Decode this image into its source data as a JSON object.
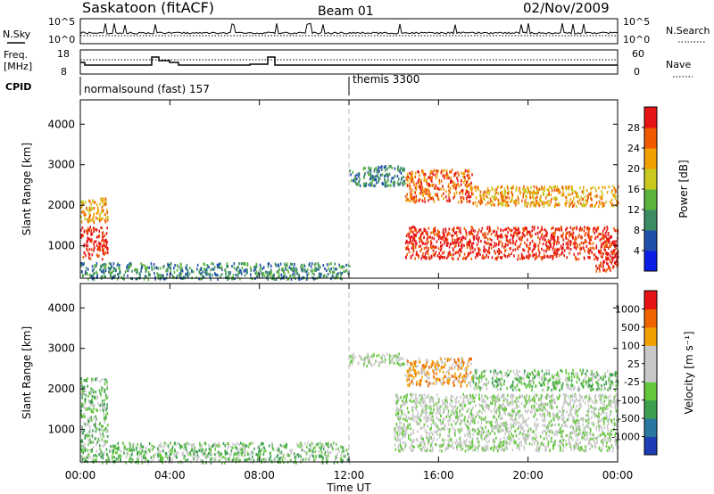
{
  "header": {
    "station": "Saskatoon (fitACF)",
    "beam": "Beam 01",
    "date": "02/Nov/2009"
  },
  "top_panels": {
    "nsky_label": "N.Sky",
    "nsearch_label": "N.Search",
    "freq_label_line1": "Freq.",
    "freq_label_line2": "[MHz]",
    "nave_label": "Nave",
    "cpid_label": "CPID",
    "noise_ticks": [
      "10^5",
      "10^0"
    ],
    "freq_ticks": [
      "18",
      "8"
    ],
    "nave_ticks": [
      "60",
      "0"
    ],
    "cpid_segments": [
      {
        "label": "normalsound (fast) 157",
        "start_hour": 0
      },
      {
        "label": "themis 3300",
        "start_hour": 12
      }
    ]
  },
  "chart_data": [
    {
      "type": "heatmap",
      "name": "power-panel",
      "xlabel": "",
      "ylabel": "Slant Range [km]",
      "xlim": [
        0,
        24
      ],
      "ylim": [
        200,
        4600
      ],
      "yticks": [
        "1000",
        "2000",
        "3000",
        "4000"
      ],
      "colorbar": {
        "label": "Power [dB]",
        "ticks": [
          "4",
          "8",
          "12",
          "16",
          "20",
          "24",
          "28"
        ],
        "colors": [
          "#0a1ee6",
          "#1e50aa",
          "#3c8c64",
          "#5ab43c",
          "#c8c81e",
          "#f0a000",
          "#f05a00",
          "#e61414"
        ]
      },
      "regions": [
        {
          "h0": 0.0,
          "h1": 1.2,
          "r0": 700,
          "r1": 1500,
          "level": 7
        },
        {
          "h0": 0.0,
          "h1": 1.2,
          "r0": 1600,
          "r1": 2200,
          "level": 5
        },
        {
          "h0": 0.0,
          "h1": 12.0,
          "r0": 200,
          "r1": 600,
          "level": 2
        },
        {
          "h0": 12.0,
          "h1": 14.5,
          "r0": 2500,
          "r1": 3000,
          "level": 2
        },
        {
          "h0": 14.5,
          "h1": 24.0,
          "r0": 700,
          "r1": 1500,
          "level": 7
        },
        {
          "h0": 14.5,
          "h1": 17.5,
          "r0": 2100,
          "r1": 2900,
          "level": 6
        },
        {
          "h0": 17.5,
          "h1": 24.0,
          "r0": 2000,
          "r1": 2500,
          "level": 5
        },
        {
          "h0": 23.0,
          "h1": 24.0,
          "r0": 400,
          "r1": 900,
          "level": 7
        }
      ]
    },
    {
      "type": "heatmap",
      "name": "velocity-panel",
      "xlabel": "Time UT",
      "ylabel": "Slant Range [km]",
      "xlim": [
        0,
        24
      ],
      "ylim": [
        200,
        4600
      ],
      "xticks": [
        "00:00",
        "04:00",
        "08:00",
        "12:00",
        "16:00",
        "20:00",
        "00:00"
      ],
      "yticks": [
        "1000",
        "2000",
        "3000",
        "4000"
      ],
      "colorbar": {
        "label": "Velocity [m s⁻¹]",
        "ticks": [
          "1000",
          "500",
          "100",
          "25",
          "-25",
          "-100",
          "-500",
          "-1000"
        ],
        "colors": [
          "#1e3cb4",
          "#2878a0",
          "#3ca050",
          "#64c83c",
          "#c8c8c8",
          "#c8c8c8",
          "#f0a000",
          "#f06400",
          "#e61414"
        ]
      },
      "regions": [
        {
          "h0": 0.0,
          "h1": 1.2,
          "r0": 700,
          "r1": 2300,
          "level": 3
        },
        {
          "h0": 0.0,
          "h1": 12.0,
          "r0": 200,
          "r1": 700,
          "level": 3
        },
        {
          "h0": 12.0,
          "h1": 14.5,
          "r0": 2600,
          "r1": 2900,
          "level": 4
        },
        {
          "h0": 14.0,
          "h1": 24.0,
          "r0": 500,
          "r1": 1900,
          "level": 4
        },
        {
          "h0": 14.5,
          "h1": 17.5,
          "r0": 2100,
          "r1": 2800,
          "level": 6
        },
        {
          "h0": 17.5,
          "h1": 24.0,
          "r0": 2000,
          "r1": 2500,
          "level": 3
        }
      ]
    }
  ]
}
